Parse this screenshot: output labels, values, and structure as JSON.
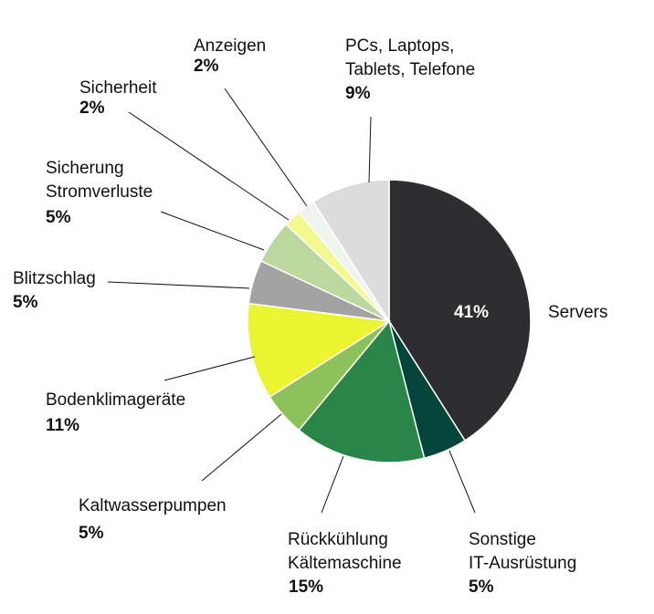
{
  "chart_data": {
    "type": "pie",
    "title": "",
    "start_angle_deg": 0,
    "direction": "clockwise",
    "slices": [
      {
        "name": "Servers",
        "label_lines": [
          "Servers"
        ],
        "value": 41,
        "value_label": "41%",
        "color": "#2e2e30"
      },
      {
        "name": "Sonstige IT-Ausrüstung",
        "label_lines": [
          "Sonstige",
          "IT-Ausrüstung"
        ],
        "value": 5,
        "value_label": "5%",
        "color": "#03453a"
      },
      {
        "name": "Rückkühlung Kältemaschine",
        "label_lines": [
          "Rückkühlung",
          "Kältemaschine"
        ],
        "value": 15,
        "value_label": "15%",
        "color": "#2a8549"
      },
      {
        "name": "Kaltwasserpumpen",
        "label_lines": [
          "Kaltwasserpumpen"
        ],
        "value": 5,
        "value_label": "5%",
        "color": "#8dc15b"
      },
      {
        "name": "Bodenklimageräte",
        "label_lines": [
          "Bodenklimageräte"
        ],
        "value": 11,
        "value_label": "11%",
        "color": "#eaf431"
      },
      {
        "name": "Blitzschlag",
        "label_lines": [
          "Blitzschlag"
        ],
        "value": 5,
        "value_label": "5%",
        "color": "#a3a3a3"
      },
      {
        "name": "Sicherung Stromverluste",
        "label_lines": [
          "Sicherung",
          "Stromverluste"
        ],
        "value": 5,
        "value_label": "5%",
        "color": "#bcd89e"
      },
      {
        "name": "Sicherheit",
        "label_lines": [
          "Sicherheit"
        ],
        "value": 2,
        "value_label": "2%",
        "color": "#f3f88f"
      },
      {
        "name": "Anzeigen",
        "label_lines": [
          "Anzeigen"
        ],
        "value": 2,
        "value_label": "2%",
        "color": "#eff4ee"
      },
      {
        "name": "PCs, Laptops, Tablets, Telefone",
        "label_lines": [
          "PCs, Laptops,",
          "Tablets, Telefone"
        ],
        "value": 9,
        "value_label": "9%",
        "color": "#dcdcdc"
      }
    ]
  }
}
